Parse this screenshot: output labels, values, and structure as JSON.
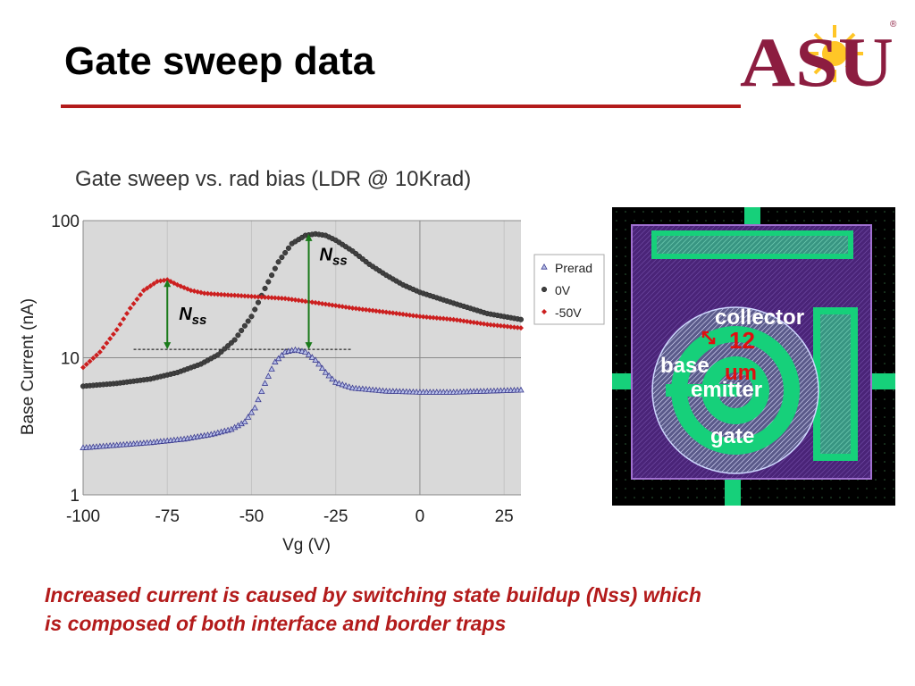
{
  "slide": {
    "title": "Gate sweep data",
    "logo_text": "ASU",
    "logo_mark": "®",
    "caption_line1": "Increased current is caused by switching state buildup (Nss) which",
    "caption_line2": "is composed of both interface and border traps"
  },
  "colors": {
    "accent": "#b31b1b",
    "logo_maroon": "#8c1d40",
    "logo_gold": "#ffc627",
    "plot_bg": "#d9d9d9",
    "chip_bg": "#000000",
    "chip_purple": "#5b2e8c",
    "chip_green": "#16d07a"
  },
  "chart_data": {
    "type": "scatter",
    "title": "Gate sweep vs. rad bias (LDR @ 10Krad)",
    "xlabel": "Vg (V)",
    "ylabel": "Base Current (nA)",
    "xlim": [
      -100,
      30
    ],
    "ylim": [
      1,
      100
    ],
    "yscale": "log",
    "grid": true,
    "legend_position": "right",
    "xticks": [
      "-100",
      "-75",
      "-50",
      "-25",
      "0",
      "25"
    ],
    "yticks": [
      "1",
      "10",
      "100"
    ],
    "series": [
      {
        "name": "Prerad",
        "marker": "triangle",
        "color": "#3b3b8f",
        "x": [
          -100,
          -90,
          -80,
          -70,
          -62,
          -56,
          -52,
          -49,
          -46,
          -43,
          -40,
          -37,
          -34,
          -31,
          -28,
          -25,
          -20,
          -10,
          0,
          10,
          20,
          30
        ],
        "y": [
          2.2,
          2.3,
          2.4,
          2.55,
          2.75,
          3.0,
          3.4,
          4.3,
          6.5,
          9.3,
          11.0,
          11.4,
          11.0,
          9.6,
          7.8,
          6.6,
          6.0,
          5.7,
          5.6,
          5.6,
          5.7,
          5.8
        ]
      },
      {
        "name": "0V",
        "marker": "circle",
        "color": "#404040",
        "x": [
          -100,
          -90,
          -80,
          -72,
          -65,
          -60,
          -55,
          -50,
          -46,
          -42,
          -38,
          -34,
          -31,
          -28,
          -25,
          -20,
          -15,
          -10,
          -5,
          0,
          10,
          20,
          30
        ],
        "y": [
          6.2,
          6.5,
          7.0,
          7.8,
          9.0,
          10.5,
          13.5,
          20,
          32,
          50,
          68,
          78,
          80,
          78,
          72,
          60,
          48,
          40,
          34,
          30,
          25,
          21,
          19
        ]
      },
      {
        "name": "-50V",
        "marker": "diamond",
        "color": "#cc1f1f",
        "x": [
          -100,
          -95,
          -90,
          -86,
          -82,
          -78,
          -75,
          -72,
          -68,
          -64,
          -60,
          -55,
          -50,
          -45,
          -40,
          -35,
          -30,
          -25,
          -20,
          -10,
          0,
          10,
          20,
          30
        ],
        "y": [
          8.5,
          11,
          16,
          23,
          31,
          36,
          37,
          34,
          31,
          29.5,
          29,
          28.5,
          28,
          27.5,
          27,
          26,
          25,
          24,
          23,
          21.5,
          20,
          19,
          17.5,
          16.5
        ]
      }
    ],
    "annotations": [
      {
        "label": "N",
        "subscript": "ss",
        "x": -75,
        "y_from": 11.5,
        "y_to": 37
      },
      {
        "label": "N",
        "subscript": "ss",
        "x": -33,
        "y_from": 11.5,
        "y_to": 80
      }
    ],
    "reference_line": {
      "y": 11.5,
      "x_from": -85,
      "x_to": -20
    }
  },
  "chip": {
    "labels": {
      "collector": "collector",
      "base": "base",
      "emitter": "emitter",
      "gate": "gate",
      "dimension_line1": "12",
      "dimension_line2": "um"
    }
  }
}
